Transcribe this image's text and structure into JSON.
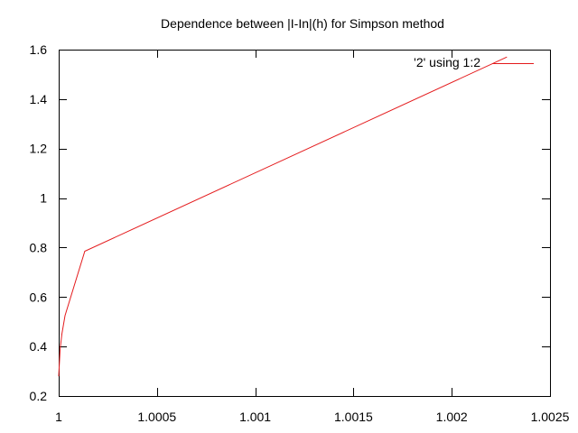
{
  "chart_data": {
    "type": "line",
    "title": "Dependence between |I-In|(h) for Simpson method",
    "xlabel": "",
    "ylabel": "",
    "xlim": [
      1,
      1.0025
    ],
    "ylim": [
      0.2,
      1.6
    ],
    "x_ticks": [
      1,
      1.0005,
      1.001,
      1.0015,
      1.002,
      1.0025
    ],
    "x_tick_labels": [
      "1",
      "1.0005",
      "1.001",
      "1.0015",
      "1.002",
      "1.0025"
    ],
    "y_ticks": [
      0.2,
      0.4,
      0.6,
      0.8,
      1.0,
      1.2,
      1.4,
      1.6
    ],
    "y_tick_labels": [
      "0.2",
      "0.4",
      "0.6",
      "0.8",
      "1",
      "1.2",
      "1.4",
      "1.6"
    ],
    "grid": false,
    "legend_position": "top-right",
    "series": [
      {
        "name": "'2' using 1:2",
        "color": "#e41a1c",
        "x": [
          1.0,
          1.0000075,
          1.000016,
          1.000032,
          1.000133,
          1.002281
        ],
        "y": [
          0.28,
          0.39,
          0.45,
          0.525,
          0.785,
          1.57
        ]
      }
    ]
  }
}
